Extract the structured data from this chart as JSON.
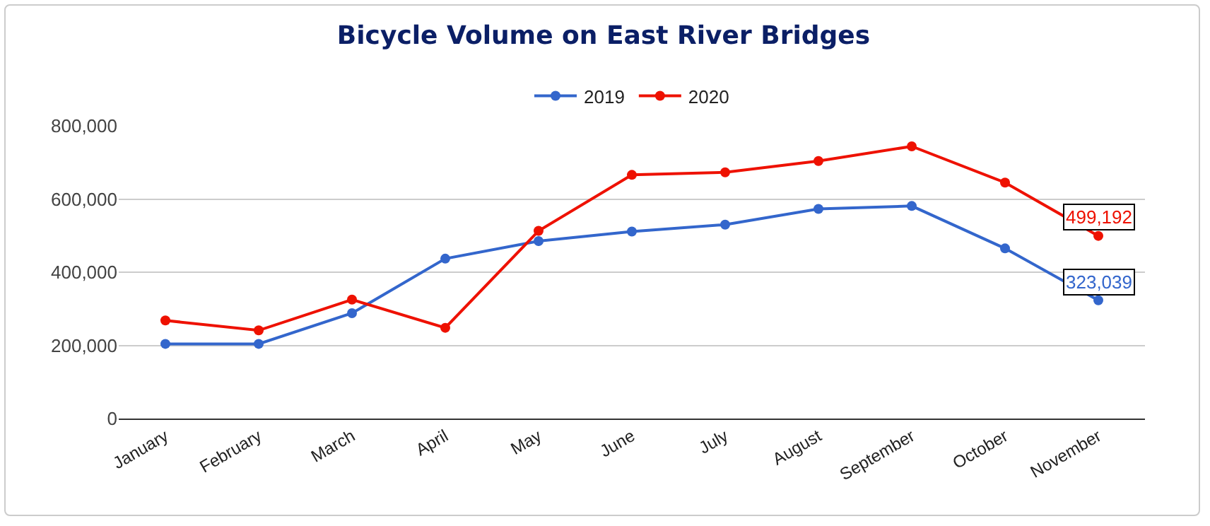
{
  "chart_data": {
    "type": "line",
    "title": "Bicycle Volume on East River Bridges",
    "categories": [
      "January",
      "February",
      "March",
      "April",
      "May",
      "June",
      "July",
      "August",
      "September",
      "October",
      "November"
    ],
    "series": [
      {
        "name": "2019",
        "color": "#3366cc",
        "values": [
          204000,
          204000,
          288000,
          437000,
          485000,
          511000,
          530000,
          573000,
          581000,
          465000,
          323039
        ],
        "value_labels": [
          null,
          null,
          null,
          null,
          null,
          null,
          null,
          null,
          null,
          null,
          "323,039"
        ]
      },
      {
        "name": "2020",
        "color": "#ee1100",
        "values": [
          268000,
          241000,
          325000,
          248000,
          513000,
          666000,
          673000,
          704000,
          744000,
          645000,
          499192
        ],
        "value_labels": [
          null,
          null,
          null,
          null,
          null,
          null,
          null,
          null,
          null,
          null,
          "499,192"
        ]
      }
    ],
    "ylim": [
      0,
      800000
    ],
    "yticks": [
      {
        "value": 0,
        "label": "0"
      },
      {
        "value": 200000,
        "label": "200,000"
      },
      {
        "value": 400000,
        "label": "400,000"
      },
      {
        "value": 600000,
        "label": "600,000"
      },
      {
        "value": 800000,
        "label": "800,000"
      }
    ],
    "grid": "y",
    "legend": "top",
    "marker": "circle",
    "line_style": "solid"
  }
}
